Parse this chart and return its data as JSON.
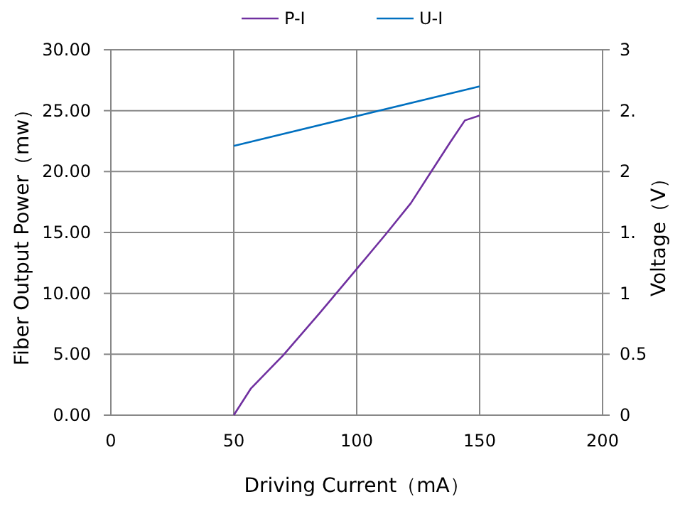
{
  "chart_data": {
    "type": "line",
    "xlabel": "Driving Current（mA）",
    "ylabel": "Fiber Output Power（mw）",
    "y2label": "Voltage（V）",
    "xlim": [
      0,
      200
    ],
    "xticks": [
      0,
      50,
      100,
      150,
      200
    ],
    "ylim": [
      0,
      30
    ],
    "yticks": [
      {
        "value": 0,
        "label": "0.00"
      },
      {
        "value": 5,
        "label": "5.00"
      },
      {
        "value": 10,
        "label": "10.00"
      },
      {
        "value": 15,
        "label": "15.00"
      },
      {
        "value": 20,
        "label": "20.00"
      },
      {
        "value": 25,
        "label": "25.00"
      },
      {
        "value": 30,
        "label": "30.00"
      }
    ],
    "y2lim": [
      0,
      3
    ],
    "y2ticks": [
      0,
      0.5,
      1,
      {
        "value": 1.5,
        "label": "1."
      },
      2,
      {
        "value": 2.5,
        "label": "2."
      },
      3
    ],
    "grid": true,
    "legend": "top",
    "marker": "none",
    "line_style": "solid",
    "series": [
      {
        "name": "P-I",
        "color": "#7030a0",
        "x": [
          50,
          57,
          70,
          85,
          100,
          112,
          122,
          130,
          138,
          144,
          150
        ],
        "values": [
          0,
          2.2,
          4.9,
          8.4,
          12.0,
          14.9,
          17.4,
          19.9,
          22.4,
          24.2,
          24.6
        ]
      },
      {
        "name": "U-I",
        "color": "#0070c0",
        "axis": "y2",
        "x": [
          50,
          150
        ],
        "values": [
          2.21,
          2.7
        ]
      }
    ]
  }
}
